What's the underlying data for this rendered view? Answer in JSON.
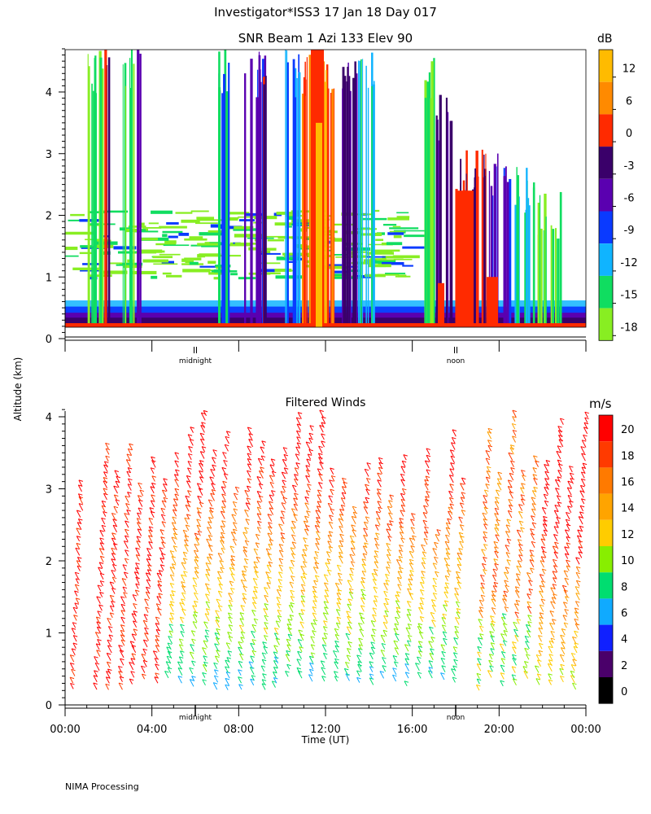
{
  "title": "Investigator*ISS3   17 Jan 18 Day 017",
  "ylabel": "Altitude (km)",
  "xlabel": "Time (UT)",
  "footer": "NIMA Processing",
  "chart_data": [
    {
      "type": "heatmap",
      "title": "SNR Beam 1 Azi 133 Elev 90",
      "colorbar_label": "dB",
      "colorbar_ticks": [
        "12",
        "6",
        "0",
        "-3",
        "-6",
        "-9",
        "-12",
        "-15",
        "-18"
      ],
      "colorbar_colors": [
        "#ffbb00",
        "#ff8a00",
        "#ff2a00",
        "#3a006a",
        "#5a00b0",
        "#0a3aff",
        "#10b4ff",
        "#10dd60",
        "#88ee22"
      ],
      "y_ticks": [
        "0",
        "1",
        "2",
        "3",
        "4"
      ],
      "ylim": [
        0,
        4.7
      ],
      "day_markers": [
        "midnight",
        "noon"
      ],
      "grid": false
    },
    {
      "type": "scatter",
      "title": "Filtered Winds",
      "colorbar_label": "m/s",
      "colorbar_ticks": [
        "20",
        "18",
        "16",
        "14",
        "12",
        "10",
        "8",
        "6",
        "4",
        "2",
        "0"
      ],
      "colorbar_colors": [
        "#ff0000",
        "#ff3a00",
        "#ff7a00",
        "#ffa400",
        "#ffcc00",
        "#88ee00",
        "#00dd70",
        "#10aaff",
        "#1020ff",
        "#4a006a",
        "#000000"
      ],
      "x_ticks": [
        "00:00",
        "04:00",
        "08:00",
        "12:00",
        "16:00",
        "20:00",
        "00:00"
      ],
      "xlim_hours": [
        0,
        24
      ],
      "y_ticks": [
        "0",
        "1",
        "2",
        "3",
        "4"
      ],
      "ylim": [
        0,
        4.2
      ],
      "day_markers": [
        "midnight",
        "noon"
      ],
      "grid": false
    }
  ]
}
